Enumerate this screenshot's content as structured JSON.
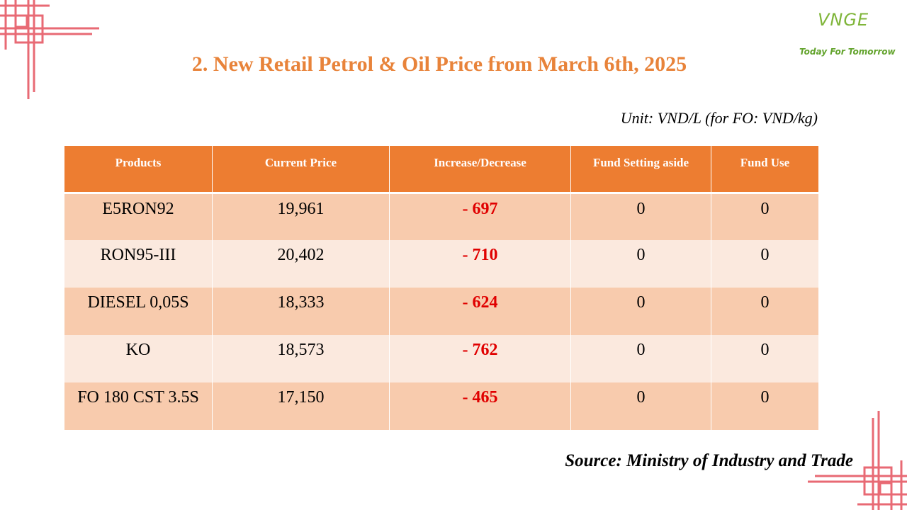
{
  "logo": {
    "mark": "VNGE",
    "tagline": "Today For Tomorrow"
  },
  "title": "2. New Retail Petrol & Oil Price from March 6th, 2025",
  "unit": "Unit: VND/L (for FO: VND/kg)",
  "table": {
    "headers": [
      "Products",
      "Current Price",
      "Increase/Decrease",
      "Fund Setting aside",
      "Fund Use"
    ],
    "rows": [
      [
        "E5RON92",
        "19,961",
        "- 697",
        "0",
        "0"
      ],
      [
        "RON95-III",
        "20,402",
        "- 710",
        "0",
        "0"
      ],
      [
        "DIESEL 0,05S",
        "18,333",
        "- 624",
        "0",
        "0"
      ],
      [
        "KO",
        "18,573",
        "- 762",
        "0",
        "0"
      ],
      [
        "FO 180 CST 3.5S",
        "17,150",
        "- 465",
        "0",
        "0"
      ]
    ]
  },
  "source": "Source: Ministry of Industry and Trade",
  "colors": {
    "accent": "#ed7d31",
    "title": "#e8833a",
    "row_dark": "#f8cbad",
    "row_light": "#fbe9de",
    "decrease": "#e00000",
    "ornament": "#e86a74",
    "logo_green": "#6ea52e"
  }
}
